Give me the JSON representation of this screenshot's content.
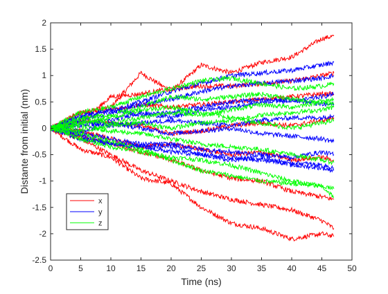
{
  "chart_data": {
    "type": "line",
    "title": "",
    "xlabel": "Time (ns)",
    "ylabel": "Distante from initial (nm)",
    "xlim": [
      0,
      50
    ],
    "ylim": [
      -2.5,
      2
    ],
    "xticks": [
      "0",
      "5",
      "10",
      "15",
      "20",
      "25",
      "30",
      "35",
      "40",
      "45",
      "50"
    ],
    "yticks": [
      "-2.5",
      "-2",
      "-1.5",
      "-1",
      "-0.5",
      "0",
      "0.5",
      "1",
      "1.5",
      "2"
    ],
    "grid": false,
    "legend_position": "bottom-left",
    "x": [
      0,
      5,
      10,
      15,
      20,
      25,
      30,
      35,
      40,
      45,
      47
    ],
    "series": [
      {
        "name": "x",
        "color": "#ff0000",
        "lines": [
          [
            0,
            0.3,
            0.4,
            1.05,
            0.7,
            1.2,
            1.05,
            1.25,
            1.35,
            1.7,
            1.75
          ],
          [
            0,
            -0.4,
            -0.55,
            -0.95,
            -1.05,
            -1.5,
            -1.8,
            -1.9,
            -2.1,
            -2.0,
            -2.05
          ],
          [
            0,
            -0.2,
            -0.5,
            -0.8,
            -1.0,
            -1.2,
            -1.35,
            -1.45,
            -1.55,
            -1.75,
            -1.9
          ],
          [
            0,
            0.1,
            0.6,
            0.65,
            0.75,
            0.8,
            0.8,
            0.85,
            0.9,
            1.0,
            1.05
          ],
          [
            0,
            0.3,
            0.35,
            0.45,
            0.4,
            0.45,
            0.5,
            0.55,
            0.6,
            0.65,
            0.65
          ],
          [
            0,
            -0.15,
            -0.3,
            -0.45,
            -0.6,
            -0.8,
            -0.95,
            -1.0,
            -1.2,
            -1.3,
            -1.35
          ],
          [
            0,
            0.15,
            0.1,
            0.05,
            -0.1,
            -0.05,
            0.05,
            0.1,
            0.05,
            0.15,
            0.2
          ],
          [
            0,
            -0.05,
            -0.2,
            -0.35,
            -0.3,
            -0.4,
            -0.5,
            -0.45,
            -0.6,
            -0.55,
            -0.6
          ]
        ]
      },
      {
        "name": "y",
        "color": "#0000ff",
        "lines": [
          [
            0,
            0.25,
            0.35,
            0.5,
            0.7,
            0.85,
            1.0,
            1.05,
            1.1,
            1.2,
            1.25
          ],
          [
            0,
            0.15,
            0.3,
            0.45,
            0.55,
            0.7,
            0.8,
            0.85,
            0.9,
            0.95,
            1.0
          ],
          [
            0,
            -0.1,
            -0.2,
            -0.3,
            -0.3,
            -0.4,
            -0.45,
            -0.5,
            -0.55,
            -0.45,
            -0.5
          ],
          [
            0,
            0.05,
            0.15,
            0.3,
            0.2,
            0.35,
            0.4,
            0.5,
            0.55,
            0.45,
            0.45
          ],
          [
            0,
            -0.2,
            -0.3,
            -0.35,
            -0.35,
            -0.5,
            -0.6,
            -0.55,
            -0.7,
            -0.75,
            -0.8
          ],
          [
            0,
            0.1,
            0.05,
            0.1,
            0.15,
            0.1,
            0.05,
            0.15,
            0.2,
            0.2,
            0.25
          ],
          [
            0,
            -0.05,
            0.1,
            0.0,
            -0.1,
            -0.05,
            0.0,
            -0.1,
            -0.15,
            -0.2,
            -0.25
          ],
          [
            0,
            0.2,
            0.35,
            0.25,
            0.3,
            0.4,
            0.5,
            0.55,
            0.5,
            0.6,
            0.65
          ],
          [
            0,
            -0.15,
            -0.3,
            -0.35,
            -0.45,
            -0.5,
            -0.55,
            -0.6,
            -0.65,
            -0.7,
            -0.75
          ]
        ]
      },
      {
        "name": "z",
        "color": "#00ff00",
        "lines": [
          [
            0,
            0.3,
            0.4,
            0.6,
            0.75,
            0.9,
            0.95,
            0.85,
            0.75,
            0.8,
            0.85
          ],
          [
            0,
            0.2,
            0.25,
            0.4,
            0.6,
            0.55,
            0.6,
            0.65,
            0.55,
            0.5,
            0.45
          ],
          [
            0,
            -0.2,
            -0.35,
            -0.45,
            -0.55,
            -0.6,
            -0.7,
            -0.85,
            -1.0,
            -1.1,
            -1.3
          ],
          [
            0,
            -0.1,
            -0.25,
            -0.4,
            -0.6,
            -0.8,
            -0.9,
            -1.0,
            -1.05,
            -1.1,
            -1.15
          ],
          [
            0,
            0.1,
            0.2,
            0.35,
            0.4,
            0.3,
            0.2,
            0.1,
            0.0,
            0.1,
            0.15
          ],
          [
            0,
            0.05,
            -0.05,
            -0.1,
            -0.2,
            -0.3,
            -0.35,
            -0.4,
            -0.5,
            -0.6,
            -0.65
          ],
          [
            0,
            -0.05,
            0.05,
            0.1,
            0.0,
            0.1,
            0.15,
            0.25,
            0.3,
            0.35,
            0.4
          ],
          [
            0,
            0.15,
            0.1,
            0.2,
            0.3,
            0.25,
            0.35,
            0.45,
            0.4,
            0.5,
            0.55
          ]
        ]
      }
    ]
  }
}
